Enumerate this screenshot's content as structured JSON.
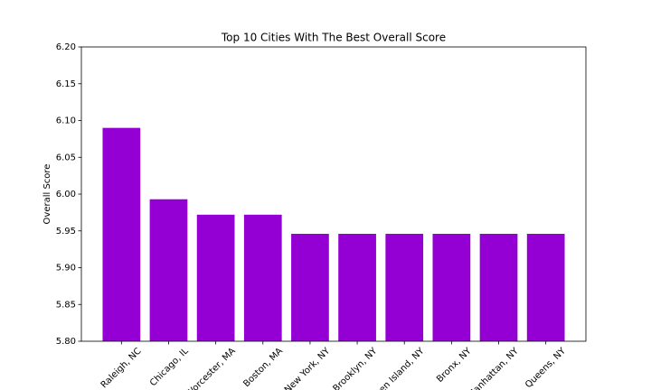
{
  "chart_data": {
    "type": "bar",
    "title": "Top 10 Cities With The Best Overall Score",
    "y_label": "Overall Score",
    "categories": [
      "Raleigh, NC",
      "Chicago, IL",
      "Worcester, MA",
      "Boston, MA",
      "New York, NY",
      "Brooklyn, NY",
      "Staten Island, NY",
      "Bronx, NY",
      "Manhattan, NY",
      "Queens, NY"
    ],
    "values": [
      6.09,
      5.993,
      5.972,
      5.972,
      5.946,
      5.946,
      5.946,
      5.946,
      5.946,
      5.946
    ],
    "color": "#9400d3",
    "ylim": [
      5.8,
      6.2
    ],
    "yticks": [
      {
        "value": 5.8,
        "label": "5.80"
      },
      {
        "value": 5.85,
        "label": "5.85"
      },
      {
        "value": 5.9,
        "label": "5.90"
      },
      {
        "value": 5.95,
        "label": "5.95"
      },
      {
        "value": 6.0,
        "label": "6.00"
      },
      {
        "value": 6.05,
        "label": "6.05"
      },
      {
        "value": 6.1,
        "label": "6.10"
      },
      {
        "value": 6.15,
        "label": "6.15"
      },
      {
        "value": 6.2,
        "label": "6.20"
      }
    ],
    "grid": false
  }
}
